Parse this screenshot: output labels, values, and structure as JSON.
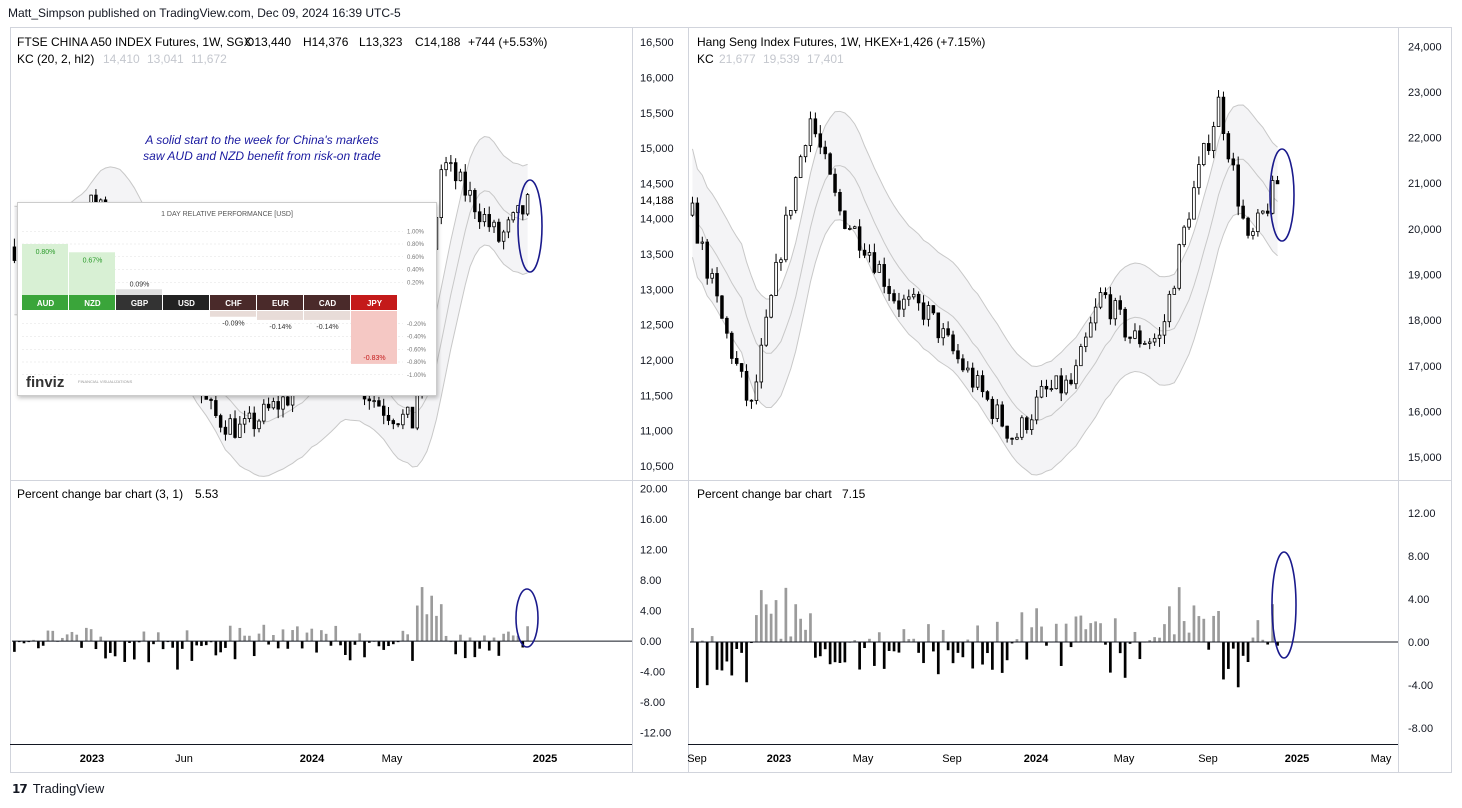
{
  "header": {
    "publisher": "Matt_Simpson published on TradingView.com, Dec 09, 2024 16:39 UTC-5"
  },
  "footer": {
    "brand": "TradingView"
  },
  "colors": {
    "accent_ellipse": "#1a1a8c",
    "up": "#ffffff",
    "down": "#000000",
    "band": "#c8c8c8",
    "pct_up": "#9b9b9b",
    "pct_down": "#000000",
    "annotation": "#1a1aa0"
  },
  "chart_data": [
    {
      "type": "candlestick",
      "title": "FTSE CHINA A50 INDEX Futures, 1W, SGX",
      "ohlc_readout": {
        "O": "O13,440",
        "H": "H14,376",
        "L": "L13,323",
        "C": "C14,188",
        "change": "+744 (+5.53%)"
      },
      "indicator": {
        "label": "KC (20, 2, hl2)",
        "values": [
          "14,410",
          "13,041",
          "11,672"
        ]
      },
      "last_price": "14,188",
      "ylim": [
        10300,
        16700
      ],
      "y_ticks": [
        "16,500",
        "16,000",
        "15,500",
        "15,000",
        "14,500",
        "14,000",
        "13,500",
        "13,000",
        "12,500",
        "12,000",
        "11,500",
        "11,000",
        "10,500"
      ],
      "x_ticks": [
        "2023",
        "Jun",
        "2024",
        "May",
        "2025"
      ],
      "annotation": [
        "A solid start to the week for China's markets",
        "saw AUD and NZD benefit from risk-on trade"
      ]
    },
    {
      "type": "candlestick",
      "title": "Hang Seng Index Futures, 1W, HKEX",
      "ohlc_readout": {
        "change": "+1,426 (+7.15%)"
      },
      "indicator": {
        "label": "KC",
        "values": [
          "21,677",
          "19,539",
          "17,401"
        ]
      },
      "ylim": [
        14500,
        24400
      ],
      "y_ticks": [
        "24,000",
        "23,000",
        "22,000",
        "21,000",
        "20,000",
        "19,000",
        "18,000",
        "17,000",
        "16,000",
        "15,000"
      ],
      "x_ticks": [
        "Sep",
        "2023",
        "May",
        "Sep",
        "2024",
        "May",
        "Sep",
        "2025",
        "May"
      ]
    },
    {
      "type": "bar",
      "title": "Percent change bar chart (3, 1)",
      "last_value": "5.53",
      "ylim": [
        -13.5,
        21
      ],
      "y_ticks": [
        "20.00",
        "16.00",
        "12.00",
        "8.00",
        "4.00",
        "0.00",
        "-4.00",
        "-8.00",
        "-12.00"
      ]
    },
    {
      "type": "bar",
      "title": "Percent change bar chart",
      "last_value": "7.15",
      "ylim": [
        -9.5,
        15
      ],
      "y_ticks": [
        "12.00",
        "8.00",
        "4.00",
        "0.00",
        "-4.00",
        "-8.00"
      ]
    },
    {
      "type": "bar",
      "title": "1 DAY RELATIVE PERFORMANCE [USD]",
      "categories": [
        "AUD",
        "NZD",
        "GBP",
        "USD",
        "CHF",
        "EUR",
        "CAD",
        "JPY"
      ],
      "values": [
        0.8,
        0.67,
        0.09,
        0.0,
        -0.09,
        -0.14,
        -0.14,
        -0.83
      ],
      "value_labels": [
        "0.80%",
        "0.67%",
        "0.09%",
        "",
        "-0.09%",
        "-0.14%",
        "-0.14%",
        "-0.83%"
      ],
      "y_ticks": [
        "1.00%",
        "0.80%",
        "0.60%",
        "0.40%",
        "0.20%",
        "-0.20%",
        "-0.40%",
        "-0.60%",
        "-0.80%",
        "-1.00%"
      ],
      "brand": "finviz",
      "brand_tagline": "FINANCIAL VISUALIZATIONS"
    }
  ]
}
